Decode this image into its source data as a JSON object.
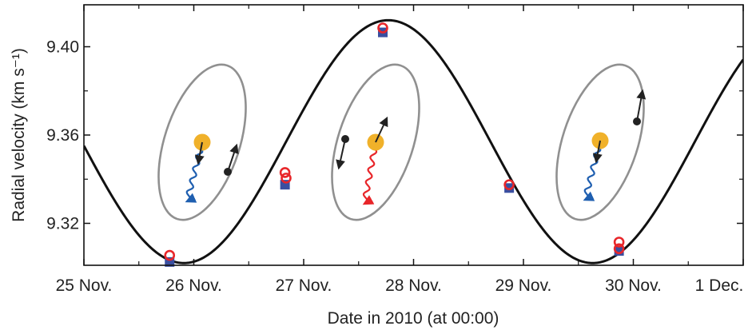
{
  "chart_data": {
    "type": "scatter",
    "xlabel": "Date in 2010 (at 00:00)",
    "ylabel": "Radial velocity (km s⁻¹)",
    "x_ticks": [
      "25 Nov.",
      "26 Nov.",
      "27 Nov.",
      "28 Nov.",
      "29 Nov.",
      "30 Nov.",
      "1 Dec."
    ],
    "x_tick_values": [
      25,
      26,
      27,
      28,
      29,
      30,
      31
    ],
    "xlim": [
      25,
      31
    ],
    "y_ticks": [
      "9.32",
      "9.36",
      "9.40"
    ],
    "y_tick_values": [
      9.32,
      9.36,
      9.4
    ],
    "ylim": [
      9.301,
      9.419
    ],
    "model_curve": {
      "center": 9.357,
      "semi_amplitude": 0.055,
      "period_days": 3.72,
      "peak_date": 27.77
    },
    "series": [
      {
        "marker": "filled-square",
        "color": "#3a4fa0",
        "points": [
          {
            "x": 25.78,
            "y": 9.3025
          },
          {
            "x": 26.83,
            "y": 9.3375
          },
          {
            "x": 27.72,
            "y": 9.4065
          },
          {
            "x": 28.87,
            "y": 9.336
          },
          {
            "x": 29.87,
            "y": 9.3075
          }
        ]
      },
      {
        "marker": "open-circle",
        "color": "#e8262a",
        "points": [
          {
            "x": 25.78,
            "y": 9.3055
          },
          {
            "x": 26.83,
            "y": 9.343
          },
          {
            "x": 26.84,
            "y": 9.3405
          },
          {
            "x": 27.72,
            "y": 9.4085
          },
          {
            "x": 28.87,
            "y": 9.3375
          },
          {
            "x": 29.87,
            "y": 9.3115
          },
          {
            "x": 29.87,
            "y": 9.3085
          }
        ]
      }
    ],
    "grid": false,
    "orbit_insets": [
      {
        "star_color": "#f0b12a",
        "orbit_color": "#909090",
        "body_color": "#222222",
        "wave_color": "#1f5fb0"
      },
      {
        "star_color": "#f0b12a",
        "orbit_color": "#909090",
        "body_color": "#222222",
        "wave_color": "#e8262a"
      },
      {
        "star_color": "#f0b12a",
        "orbit_color": "#909090",
        "body_color": "#222222",
        "wave_color": "#1f5fb0"
      }
    ]
  }
}
